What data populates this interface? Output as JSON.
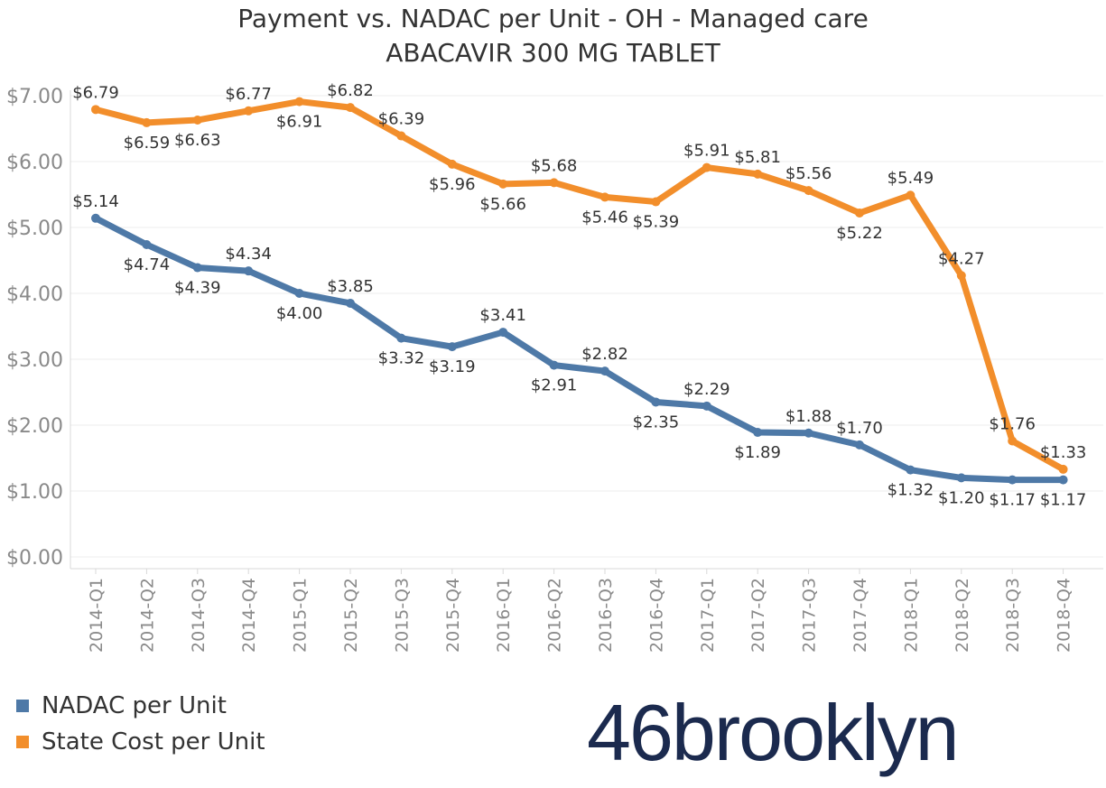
{
  "title": "Payment vs. NADAC per Unit - OH - Managed care",
  "subtitle": "ABACAVIR 300 MG TABLET",
  "chart_data": {
    "type": "line",
    "title": "Payment vs. NADAC per Unit - OH - Managed care",
    "subtitle": "ABACAVIR 300 MG TABLET",
    "categories": [
      "2014-Q1",
      "2014-Q2",
      "2014-Q3",
      "2014-Q4",
      "2015-Q1",
      "2015-Q2",
      "2015-Q3",
      "2015-Q4",
      "2016-Q1",
      "2016-Q2",
      "2016-Q3",
      "2016-Q4",
      "2017-Q1",
      "2017-Q2",
      "2017-Q3",
      "2017-Q4",
      "2018-Q1",
      "2018-Q2",
      "2018-Q3",
      "2018-Q4"
    ],
    "ylim": [
      0,
      7
    ],
    "yticks": [
      0,
      1,
      2,
      3,
      4,
      5,
      6,
      7
    ],
    "ytick_labels": [
      "$0.00",
      "$1.00",
      "$2.00",
      "$3.00",
      "$4.00",
      "$5.00",
      "$6.00",
      "$7.00"
    ],
    "grid": true,
    "legend_position": "bottom-left",
    "series": [
      {
        "name": "NADAC per Unit",
        "color": "#4e79a7",
        "values": [
          5.14,
          4.74,
          4.39,
          4.34,
          4.0,
          3.85,
          3.32,
          3.19,
          3.41,
          2.91,
          2.82,
          2.35,
          2.29,
          1.89,
          1.88,
          1.7,
          1.32,
          1.2,
          1.17,
          1.17
        ],
        "labels": [
          "$5.14",
          "$4.74",
          "$4.39",
          "$4.34",
          "$4.00",
          "$3.85",
          "$3.32",
          "$3.19",
          "$3.41",
          "$2.91",
          "$2.82",
          "$2.35",
          "$2.29",
          "$1.89",
          "$1.88",
          "$1.70",
          "$1.32",
          "$1.20",
          "$1.17",
          "$1.17"
        ],
        "label_pos": [
          "above",
          "below",
          "below",
          "above",
          "below",
          "above",
          "below",
          "below",
          "above",
          "below",
          "above",
          "below",
          "above",
          "below",
          "above",
          "above",
          "below",
          "below",
          "below",
          "below"
        ]
      },
      {
        "name": "State Cost per Unit",
        "color": "#f28e2b",
        "values": [
          6.79,
          6.59,
          6.63,
          6.77,
          6.91,
          6.82,
          6.39,
          5.96,
          5.66,
          5.68,
          5.46,
          5.39,
          5.91,
          5.81,
          5.56,
          5.22,
          5.49,
          4.27,
          1.76,
          1.33
        ],
        "labels": [
          "$6.79",
          "$6.59",
          "$6.63",
          "$6.77",
          "$6.91",
          "$6.82",
          "$6.39",
          "$5.96",
          "$5.66",
          "$5.68",
          "$5.46",
          "$5.39",
          "$5.91",
          "$5.81",
          "$5.56",
          "$5.22",
          "$5.49",
          "$4.27",
          "$1.76",
          "$1.33"
        ],
        "label_pos": [
          "above",
          "below",
          "below",
          "above",
          "below",
          "above",
          "above",
          "below",
          "below",
          "above",
          "below",
          "below",
          "above",
          "above",
          "above",
          "below",
          "above",
          "above",
          "above",
          "above"
        ]
      }
    ]
  },
  "logo": {
    "text": "46brooklyn",
    "color": "#1b2a4e"
  }
}
